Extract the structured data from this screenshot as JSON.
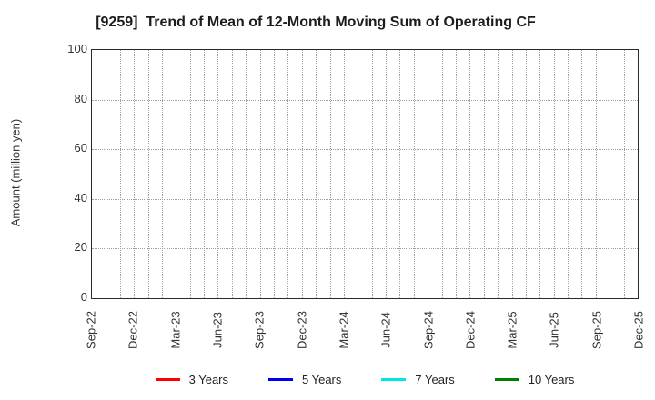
{
  "chart_data": {
    "type": "line",
    "title": "[9259]  Trend of Mean of 12-Month Moving Sum of Operating CF",
    "ylabel": "Amount (million yen)",
    "ylim": [
      0,
      100
    ],
    "yticks": [
      0,
      20,
      40,
      60,
      80,
      100
    ],
    "x_tick_labels": [
      "Sep-22",
      "Dec-22",
      "Mar-23",
      "Jun-23",
      "Sep-23",
      "Dec-23",
      "Mar-24",
      "Jun-24",
      "Sep-24",
      "Dec-24",
      "Mar-25",
      "Jun-25",
      "Sep-25",
      "Dec-25"
    ],
    "x_months_total": 40,
    "x_major_every": 3,
    "grid": "dotted",
    "grid_color": "#9e9e9e",
    "legend_position": "bottom",
    "series": [
      {
        "name": "3 Years",
        "color": "#ff0000",
        "values": []
      },
      {
        "name": "5 Years",
        "color": "#0000ee",
        "values": []
      },
      {
        "name": "7 Years",
        "color": "#00e5e5",
        "values": []
      },
      {
        "name": "10 Years",
        "color": "#008000",
        "values": []
      }
    ]
  }
}
